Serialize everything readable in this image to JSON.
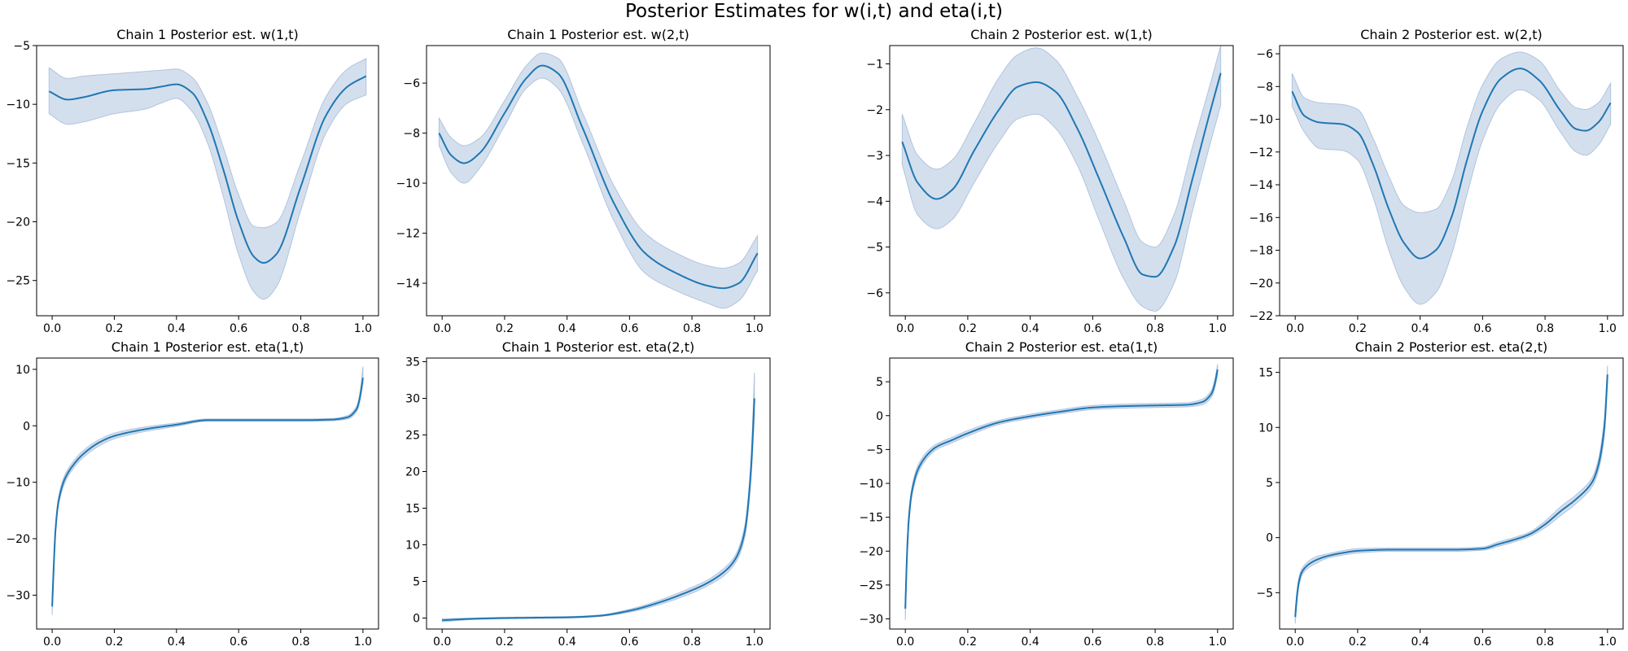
{
  "figure": {
    "suptitle": "Posterior Estimates for w(i,t) and eta(i,t)"
  },
  "colors": {
    "line": "#1f77b4",
    "band": "#b0c4de",
    "axes": "#000000"
  },
  "chart_data": [
    {
      "type": "line",
      "title": "Chain 1 Posterior est. w(1,t)",
      "xlim": [
        -0.05,
        1.05
      ],
      "ylim": [
        -28,
        -5
      ],
      "xticks": [
        0.0,
        0.2,
        0.4,
        0.6,
        0.8,
        1.0
      ],
      "xtick_labels": [
        "0.0",
        "0.2",
        "0.4",
        "0.6",
        "0.8",
        "1.0"
      ],
      "yticks": [
        -25,
        -20,
        -15,
        -10,
        -5
      ],
      "ytick_labels": [
        "−25",
        "−20",
        "−15",
        "−10",
        "−5"
      ],
      "x": [
        -0.01,
        0.05,
        0.1,
        0.2,
        0.3,
        0.35,
        0.4,
        0.45,
        0.5,
        0.55,
        0.6,
        0.65,
        0.68,
        0.72,
        0.8,
        0.88,
        0.95,
        1.01
      ],
      "mean": [
        -8.9,
        -9.6,
        -9.4,
        -8.8,
        -8.7,
        -8.5,
        -8.3,
        -9.0,
        -11.5,
        -15.5,
        -20.0,
        -23.0,
        -23.5,
        -22.8,
        -17.0,
        -11.0,
        -8.5,
        -7.6
      ],
      "lower": [
        -10.8,
        -11.7,
        -11.5,
        -10.8,
        -10.4,
        -9.9,
        -9.5,
        -10.6,
        -13.3,
        -17.8,
        -22.8,
        -26.0,
        -26.6,
        -25.6,
        -19.0,
        -12.5,
        -9.9,
        -9.2
      ],
      "upper": [
        -6.9,
        -7.8,
        -7.6,
        -7.4,
        -7.2,
        -7.1,
        -7.0,
        -7.7,
        -9.9,
        -13.6,
        -17.7,
        -20.4,
        -20.5,
        -20.1,
        -15.0,
        -9.4,
        -7.0,
        -6.1
      ]
    },
    {
      "type": "line",
      "title": "Chain 1 Posterior est. w(2,t)",
      "xlim": [
        -0.05,
        1.05
      ],
      "ylim": [
        -15.3,
        -4.5
      ],
      "xticks": [
        0.0,
        0.2,
        0.4,
        0.6,
        0.8,
        1.0
      ],
      "xtick_labels": [
        "0.0",
        "0.2",
        "0.4",
        "0.6",
        "0.8",
        "1.0"
      ],
      "yticks": [
        -14,
        -12,
        -10,
        -8,
        -6
      ],
      "ytick_labels": [
        "−14",
        "−12",
        "−10",
        "−8",
        "−6"
      ],
      "x": [
        -0.01,
        0.03,
        0.07,
        0.12,
        0.2,
        0.27,
        0.32,
        0.37,
        0.45,
        0.55,
        0.65,
        0.75,
        0.85,
        0.9,
        0.95,
        1.01
      ],
      "mean": [
        -8.0,
        -8.9,
        -9.2,
        -8.8,
        -7.2,
        -5.8,
        -5.3,
        -5.6,
        -7.8,
        -10.8,
        -12.8,
        -13.6,
        -14.1,
        -14.2,
        -14.0,
        -12.8
      ],
      "lower": [
        -8.5,
        -9.6,
        -10.0,
        -9.4,
        -7.7,
        -6.2,
        -5.8,
        -6.2,
        -8.4,
        -11.5,
        -13.6,
        -14.3,
        -14.8,
        -15.0,
        -14.7,
        -13.5
      ],
      "upper": [
        -7.4,
        -8.2,
        -8.5,
        -8.2,
        -6.7,
        -5.3,
        -4.8,
        -5.0,
        -7.2,
        -10.1,
        -12.0,
        -12.8,
        -13.3,
        -13.4,
        -13.2,
        -12.1
      ]
    },
    {
      "type": "line",
      "title": "Chain 2 Posterior est. w(1,t)",
      "xlim": [
        -0.05,
        1.05
      ],
      "ylim": [
        -6.5,
        -0.6
      ],
      "xticks": [
        0.0,
        0.2,
        0.4,
        0.6,
        0.8,
        1.0
      ],
      "xtick_labels": [
        "0.0",
        "0.2",
        "0.4",
        "0.6",
        "0.8",
        "1.0"
      ],
      "yticks": [
        -6,
        -5,
        -4,
        -3,
        -2,
        -1
      ],
      "ytick_labels": [
        "−6",
        "−5",
        "−4",
        "−3",
        "−2",
        "−1"
      ],
      "x": [
        -0.01,
        0.04,
        0.1,
        0.15,
        0.22,
        0.3,
        0.36,
        0.42,
        0.48,
        0.55,
        0.62,
        0.7,
        0.76,
        0.8,
        0.86,
        0.92,
        0.97,
        1.01
      ],
      "mean": [
        -2.7,
        -3.6,
        -3.95,
        -3.75,
        -2.9,
        -2.0,
        -1.5,
        -1.4,
        -1.6,
        -2.4,
        -3.5,
        -4.8,
        -5.6,
        -5.65,
        -5.0,
        -3.5,
        -2.2,
        -1.2
      ],
      "lower": [
        -3.2,
        -4.3,
        -4.6,
        -4.4,
        -3.6,
        -2.7,
        -2.2,
        -2.1,
        -2.4,
        -3.2,
        -4.4,
        -5.7,
        -6.3,
        -6.4,
        -5.8,
        -4.2,
        -2.9,
        -1.9
      ],
      "upper": [
        -2.1,
        -3.0,
        -3.3,
        -3.1,
        -2.3,
        -1.3,
        -0.8,
        -0.65,
        -0.9,
        -1.7,
        -2.7,
        -4.0,
        -4.9,
        -5.0,
        -4.3,
        -2.8,
        -1.6,
        -0.6
      ]
    },
    {
      "type": "line",
      "title": "Chain 2 Posterior est. w(2,t)",
      "xlim": [
        -0.05,
        1.05
      ],
      "ylim": [
        -22,
        -5.5
      ],
      "xticks": [
        0.0,
        0.2,
        0.4,
        0.6,
        0.8,
        1.0
      ],
      "xtick_labels": [
        "0.0",
        "0.2",
        "0.4",
        "0.6",
        "0.8",
        "1.0"
      ],
      "yticks": [
        -22,
        -20,
        -18,
        -16,
        -14,
        -12,
        -10,
        -8,
        -6
      ],
      "ytick_labels": [
        "−22",
        "−20",
        "−18",
        "−16",
        "−14",
        "−12",
        "−10",
        "−8",
        "−6"
      ],
      "x": [
        -0.01,
        0.03,
        0.08,
        0.15,
        0.2,
        0.25,
        0.3,
        0.35,
        0.4,
        0.45,
        0.5,
        0.55,
        0.6,
        0.66,
        0.72,
        0.78,
        0.85,
        0.9,
        0.93,
        0.97,
        1.01
      ],
      "mean": [
        -8.3,
        -9.8,
        -10.2,
        -10.3,
        -10.8,
        -12.8,
        -15.5,
        -17.6,
        -18.5,
        -18.0,
        -16.0,
        -12.5,
        -9.5,
        -7.5,
        -6.9,
        -7.6,
        -9.5,
        -10.6,
        -10.7,
        -10.2,
        -9.0
      ],
      "lower": [
        -9.2,
        -10.8,
        -11.8,
        -11.9,
        -12.5,
        -14.8,
        -18.0,
        -20.3,
        -21.3,
        -20.6,
        -18.3,
        -14.6,
        -11.3,
        -9.0,
        -8.2,
        -8.8,
        -10.8,
        -12.0,
        -12.2,
        -11.6,
        -10.3
      ],
      "upper": [
        -7.2,
        -8.7,
        -9.0,
        -9.1,
        -9.4,
        -11.2,
        -13.5,
        -15.3,
        -15.7,
        -15.5,
        -13.8,
        -10.5,
        -7.9,
        -6.3,
        -5.9,
        -6.4,
        -8.3,
        -9.3,
        -9.4,
        -9.0,
        -7.8
      ]
    },
    {
      "type": "line",
      "title": "Chain 1 Posterior est. eta(1,t)",
      "xlim": [
        -0.05,
        1.05
      ],
      "ylim": [
        -36,
        12
      ],
      "xticks": [
        0.0,
        0.2,
        0.4,
        0.6,
        0.8,
        1.0
      ],
      "xtick_labels": [
        "0.0",
        "0.2",
        "0.4",
        "0.6",
        "0.8",
        "1.0"
      ],
      "yticks": [
        -30,
        -20,
        -10,
        0,
        10
      ],
      "ytick_labels": [
        "−30",
        "−20",
        "−10",
        "0",
        "10"
      ],
      "x": [
        0.0,
        0.005,
        0.01,
        0.02,
        0.04,
        0.07,
        0.1,
        0.15,
        0.2,
        0.3,
        0.4,
        0.5,
        0.6,
        0.7,
        0.8,
        0.9,
        0.95,
        0.98,
        0.99,
        1.0
      ],
      "mean": [
        -32.0,
        -25.0,
        -19.0,
        -13.5,
        -9.5,
        -6.8,
        -5.0,
        -3.0,
        -1.8,
        -0.6,
        0.2,
        1.0,
        1.0,
        1.0,
        1.0,
        1.1,
        1.5,
        3.0,
        5.0,
        8.5
      ],
      "lower": [
        -33.5,
        -26.5,
        -20.0,
        -14.2,
        -10.2,
        -7.4,
        -5.6,
        -3.6,
        -2.3,
        -1.0,
        -0.1,
        0.8,
        0.8,
        0.8,
        0.8,
        0.9,
        1.2,
        2.5,
        4.3,
        7.5
      ],
      "upper": [
        -30.5,
        -23.5,
        -18.0,
        -12.8,
        -8.8,
        -6.2,
        -4.4,
        -2.5,
        -1.3,
        -0.2,
        0.5,
        1.2,
        1.2,
        1.2,
        1.2,
        1.3,
        1.8,
        3.5,
        5.8,
        10.5
      ]
    },
    {
      "type": "line",
      "title": "Chain 1 Posterior est. eta(2,t)",
      "xlim": [
        -0.05,
        1.05
      ],
      "ylim": [
        -1.5,
        35.5
      ],
      "xticks": [
        0.0,
        0.2,
        0.4,
        0.6,
        0.8,
        1.0
      ],
      "xtick_labels": [
        "0.0",
        "0.2",
        "0.4",
        "0.6",
        "0.8",
        "1.0"
      ],
      "yticks": [
        0,
        5,
        10,
        15,
        20,
        25,
        30,
        35
      ],
      "ytick_labels": [
        "0",
        "5",
        "10",
        "15",
        "20",
        "25",
        "30",
        "35"
      ],
      "x": [
        0.0,
        0.1,
        0.2,
        0.3,
        0.4,
        0.5,
        0.6,
        0.7,
        0.8,
        0.85,
        0.9,
        0.93,
        0.95,
        0.97,
        0.98,
        0.99,
        1.0
      ],
      "mean": [
        -0.3,
        -0.1,
        0.0,
        0.05,
        0.1,
        0.3,
        1.0,
        2.2,
        3.8,
        4.8,
        6.2,
        7.5,
        9.0,
        12.0,
        15.5,
        21.0,
        30.0
      ],
      "lower": [
        -0.5,
        -0.2,
        -0.1,
        -0.05,
        0.0,
        0.2,
        0.8,
        1.9,
        3.4,
        4.4,
        5.7,
        7.0,
        8.4,
        11.2,
        14.5,
        19.5,
        27.5
      ],
      "upper": [
        -0.1,
        0.0,
        0.1,
        0.15,
        0.2,
        0.4,
        1.2,
        2.5,
        4.2,
        5.2,
        6.7,
        8.0,
        9.6,
        12.8,
        16.5,
        22.5,
        33.5
      ]
    },
    {
      "type": "line",
      "title": "Chain 2 Posterior est. eta(1,t)",
      "xlim": [
        -0.05,
        1.05
      ],
      "ylim": [
        -31.5,
        8.5
      ],
      "xticks": [
        0.0,
        0.2,
        0.4,
        0.6,
        0.8,
        1.0
      ],
      "xtick_labels": [
        "0.0",
        "0.2",
        "0.4",
        "0.6",
        "0.8",
        "1.0"
      ],
      "yticks": [
        -30,
        -25,
        -20,
        -15,
        -10,
        -5,
        0,
        5
      ],
      "ytick_labels": [
        "−30",
        "−25",
        "−20",
        "−15",
        "−10",
        "−5",
        "0",
        "5"
      ],
      "x": [
        0.0,
        0.005,
        0.01,
        0.02,
        0.04,
        0.07,
        0.1,
        0.15,
        0.2,
        0.3,
        0.4,
        0.5,
        0.6,
        0.7,
        0.8,
        0.9,
        0.95,
        0.98,
        0.99,
        1.0
      ],
      "mean": [
        -28.5,
        -21.0,
        -16.0,
        -11.5,
        -8.0,
        -5.8,
        -4.6,
        -3.6,
        -2.6,
        -1.0,
        -0.1,
        0.6,
        1.2,
        1.4,
        1.5,
        1.6,
        2.0,
        3.2,
        4.5,
        6.8
      ],
      "lower": [
        -30.2,
        -22.3,
        -17.0,
        -12.2,
        -8.6,
        -6.3,
        -5.0,
        -4.0,
        -3.0,
        -1.3,
        -0.4,
        0.3,
        0.9,
        1.1,
        1.2,
        1.3,
        1.6,
        2.7,
        3.9,
        6.0
      ],
      "upper": [
        -26.8,
        -19.7,
        -15.0,
        -10.8,
        -7.4,
        -5.3,
        -4.2,
        -3.2,
        -2.2,
        -0.7,
        0.2,
        0.9,
        1.5,
        1.7,
        1.8,
        1.9,
        2.4,
        3.7,
        5.1,
        7.6
      ]
    },
    {
      "type": "line",
      "title": "Chain 2 Posterior est. eta(2,t)",
      "xlim": [
        -0.05,
        1.05
      ],
      "ylim": [
        -8.3,
        16.3
      ],
      "xticks": [
        0.0,
        0.2,
        0.4,
        0.6,
        0.8,
        1.0
      ],
      "xtick_labels": [
        "0.0",
        "0.2",
        "0.4",
        "0.6",
        "0.8",
        "1.0"
      ],
      "yticks": [
        -5,
        0,
        5,
        10,
        15
      ],
      "ytick_labels": [
        "−5",
        "0",
        "5",
        "10",
        "15"
      ],
      "x": [
        0.0,
        0.005,
        0.01,
        0.02,
        0.04,
        0.07,
        0.1,
        0.15,
        0.2,
        0.3,
        0.4,
        0.5,
        0.6,
        0.65,
        0.7,
        0.75,
        0.8,
        0.85,
        0.9,
        0.95,
        0.97,
        0.99,
        1.0
      ],
      "mean": [
        -7.2,
        -5.5,
        -4.3,
        -3.2,
        -2.5,
        -2.0,
        -1.7,
        -1.4,
        -1.2,
        -1.1,
        -1.1,
        -1.1,
        -1.0,
        -0.6,
        -0.2,
        0.3,
        1.2,
        2.4,
        3.5,
        5.0,
        6.5,
        10.0,
        14.8
      ],
      "lower": [
        -7.8,
        -6.0,
        -4.7,
        -3.5,
        -2.8,
        -2.3,
        -1.9,
        -1.6,
        -1.4,
        -1.25,
        -1.25,
        -1.25,
        -1.15,
        -0.8,
        -0.4,
        0.1,
        0.9,
        2.0,
        3.1,
        4.6,
        6.0,
        9.2,
        14.0
      ],
      "upper": [
        -6.6,
        -5.0,
        -3.9,
        -2.9,
        -2.2,
        -1.7,
        -1.5,
        -1.2,
        -1.0,
        -0.95,
        -0.95,
        -0.95,
        -0.85,
        -0.4,
        0.0,
        0.5,
        1.5,
        2.8,
        3.9,
        5.4,
        7.0,
        10.8,
        15.6
      ]
    }
  ]
}
